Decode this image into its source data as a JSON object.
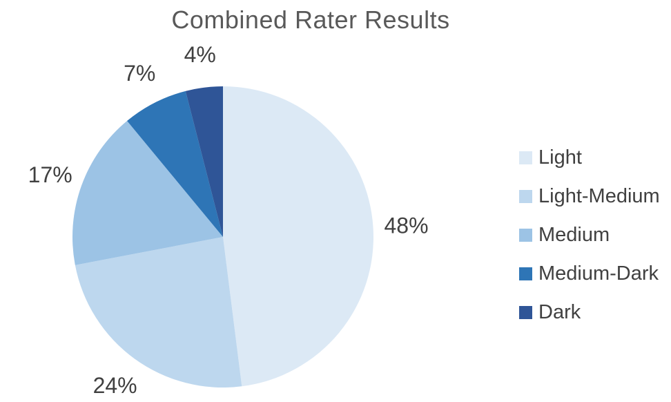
{
  "chart_data": {
    "type": "pie",
    "title": "Combined Rater Results",
    "categories": [
      "Light",
      "Light-Medium",
      "Medium",
      "Medium-Dark",
      "Dark"
    ],
    "values": [
      48,
      24,
      17,
      7,
      4
    ],
    "labels": [
      "48%",
      "24%",
      "17%",
      "7%",
      "4%"
    ],
    "unit": "%",
    "colors": [
      "#DCE9F5",
      "#BDD7EE",
      "#9CC3E5",
      "#2E75B6",
      "#2F5597"
    ],
    "start_at": "12-oclock",
    "direction": "clockwise",
    "label_position": "outside",
    "legend_position": "right",
    "title_color": "#595959",
    "label_color": "#404040",
    "legend_text_color": "#404040",
    "background_color": "#FFFFFF"
  }
}
